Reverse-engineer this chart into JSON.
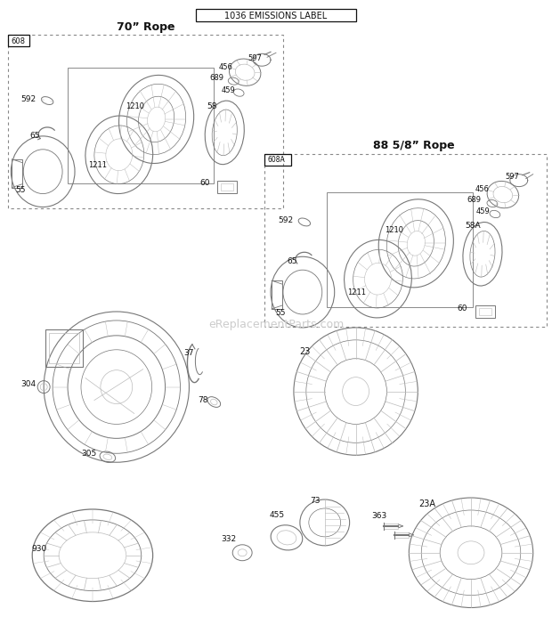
{
  "title": "1036 EMISSIONS LABEL",
  "bg_color": "#ffffff",
  "box1_label": "70\" Rope",
  "box2_label": "88 5/8\" Rope",
  "watermark": "eReplacementParts.com"
}
